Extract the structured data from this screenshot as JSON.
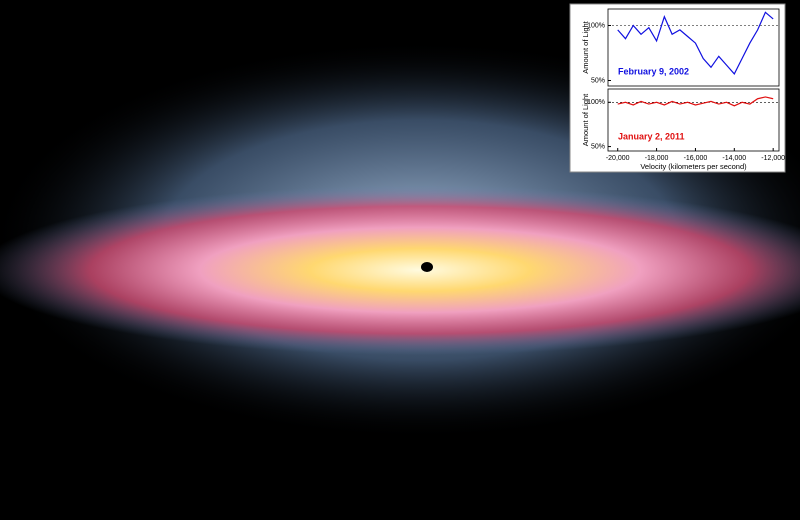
{
  "chart_data": [
    {
      "type": "line",
      "ylabel": "Amount of Light",
      "x": [
        -20000,
        -19600,
        -19200,
        -18800,
        -18400,
        -18000,
        -17600,
        -17200,
        -16800,
        -16400,
        -16000,
        -15600,
        -15200,
        -14800,
        -14400,
        -14000,
        -13600,
        -13200,
        -12800,
        -12400,
        -12000
      ],
      "series": [
        {
          "name": "February 9, 2002",
          "color": "#1010e0",
          "values": [
            96,
            88,
            100,
            92,
            98,
            86,
            108,
            92,
            96,
            90,
            84,
            70,
            62,
            72,
            64,
            56,
            70,
            84,
            96,
            112,
            106
          ]
        }
      ],
      "xlim": [
        -20500,
        -11700
      ],
      "ylim": [
        45,
        115
      ],
      "yticks": [
        {
          "value": 100,
          "label": "100%"
        },
        {
          "value": 50,
          "label": "50%"
        }
      ],
      "grid": "dashed"
    },
    {
      "type": "line",
      "ylabel": "Amount of Light",
      "xlabel": "Velocity (kilometers per second)",
      "x": [
        -20000,
        -19600,
        -19200,
        -18800,
        -18400,
        -18000,
        -17600,
        -17200,
        -16800,
        -16400,
        -16000,
        -15600,
        -15200,
        -14800,
        -14400,
        -14000,
        -13600,
        -13200,
        -12800,
        -12400,
        -12000
      ],
      "series": [
        {
          "name": "January 2, 2011",
          "color": "#e01010",
          "values": [
            98,
            100,
            97,
            101,
            98,
            100,
            97,
            101,
            98,
            100,
            97,
            99,
            101,
            98,
            100,
            96,
            100,
            98,
            104,
            106,
            104
          ]
        }
      ],
      "xlim": [
        -20500,
        -11700
      ],
      "ylim": [
        45,
        115
      ],
      "yticks": [
        {
          "value": 100,
          "label": "100%"
        },
        {
          "value": 50,
          "label": "50%"
        }
      ],
      "xticks": [
        {
          "value": -20000,
          "label": "-20,000"
        },
        {
          "value": -18000,
          "label": "-18,000"
        },
        {
          "value": -16000,
          "label": "-16,000"
        },
        {
          "value": -14000,
          "label": "-14,000"
        },
        {
          "value": -12000,
          "label": "-12,000"
        }
      ],
      "grid": "dashed"
    }
  ]
}
